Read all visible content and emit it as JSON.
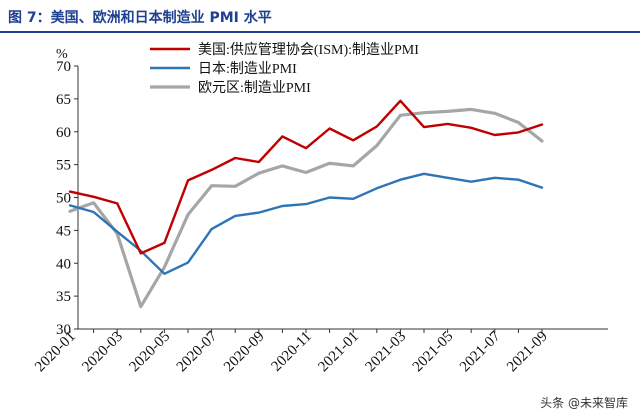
{
  "figure": {
    "title": "图 7：美国、欧洲和日本制造业 PMI 水平"
  },
  "watermark": "头条 @未来智库",
  "colors": {
    "title": "#1f3f8f",
    "us": "#c00000",
    "jp": "#2e75b6",
    "eu": "#a6a6a6"
  },
  "chart_data": {
    "type": "line",
    "title": "",
    "xlabel": "",
    "ylabel": "%",
    "ylim": [
      30,
      70
    ],
    "yticks": [
      30,
      35,
      40,
      45,
      50,
      55,
      60,
      65,
      70
    ],
    "x": [
      "2020-01",
      "2020-02",
      "2020-03",
      "2020-04",
      "2020-05",
      "2020-06",
      "2020-07",
      "2020-08",
      "2020-09",
      "2020-10",
      "2020-11",
      "2020-12",
      "2021-01",
      "2021-02",
      "2021-03",
      "2021-04",
      "2021-05",
      "2021-06",
      "2021-07",
      "2021-08",
      "2021-09"
    ],
    "xtick_labels": [
      "2020-01",
      "2020-03",
      "2020-05",
      "2020-07",
      "2020-09",
      "2020-11",
      "2021-01",
      "2021-03",
      "2021-05",
      "2021-07",
      "2021-09"
    ],
    "grid": false,
    "legend_position": "top-left",
    "series": [
      {
        "name": "美国:供应管理协会(ISM):制造业PMI",
        "color_key": "us",
        "values": [
          50.9,
          50.1,
          49.1,
          41.5,
          43.1,
          52.6,
          54.2,
          56.0,
          55.4,
          59.3,
          57.5,
          60.5,
          58.7,
          60.8,
          64.7,
          60.7,
          61.2,
          60.6,
          59.5,
          59.9,
          61.1
        ]
      },
      {
        "name": "日本:制造业PMI",
        "color_key": "jp",
        "values": [
          48.8,
          47.8,
          44.8,
          41.9,
          38.4,
          40.1,
          45.2,
          47.2,
          47.7,
          48.7,
          49.0,
          50.0,
          49.8,
          51.4,
          52.7,
          53.6,
          53.0,
          52.4,
          53.0,
          52.7,
          51.5
        ]
      },
      {
        "name": "欧元区:制造业PMI",
        "color_key": "eu",
        "values": [
          47.9,
          49.2,
          44.5,
          33.4,
          39.4,
          47.4,
          51.8,
          51.7,
          53.7,
          54.8,
          53.8,
          55.2,
          54.8,
          57.9,
          62.5,
          62.9,
          63.1,
          63.4,
          62.8,
          61.4,
          58.6
        ]
      }
    ]
  }
}
